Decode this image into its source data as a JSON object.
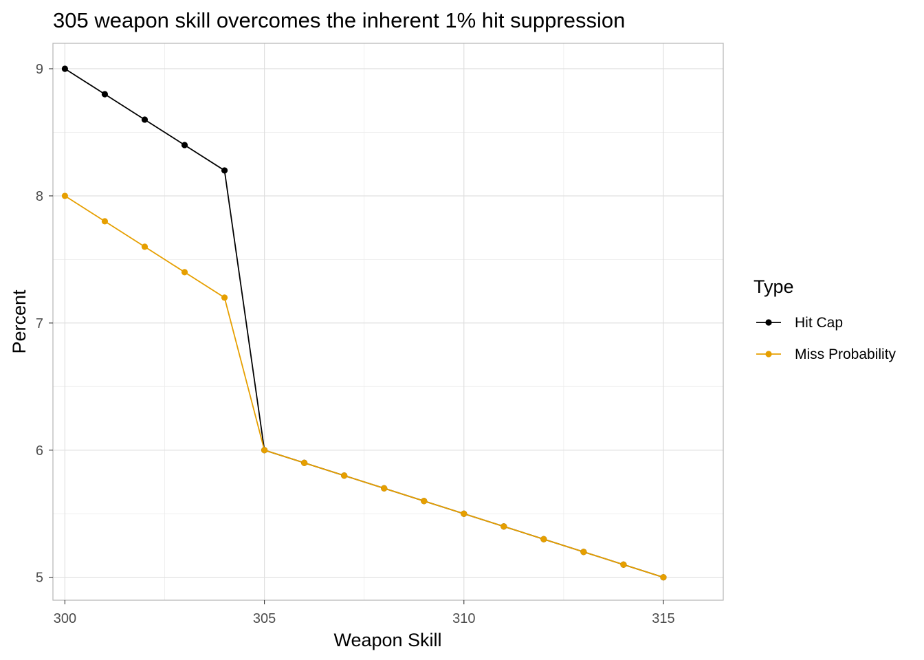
{
  "chart_data": {
    "type": "line",
    "title": "305 weapon skill overcomes the inherent 1% hit suppression",
    "xlabel": "Weapon Skill",
    "ylabel": "Percent",
    "xlim": [
      299.7,
      316.5
    ],
    "ylim": [
      4.82,
      9.2
    ],
    "x_ticks": [
      300,
      305,
      310,
      315
    ],
    "y_ticks": [
      5,
      6,
      7,
      8,
      9
    ],
    "grid": true,
    "legend": {
      "title": "Type",
      "position": "right"
    },
    "series": [
      {
        "name": "Hit Cap",
        "color": "#000000",
        "x": [
          300,
          301,
          302,
          303,
          304,
          305,
          306,
          307,
          308,
          309,
          310,
          311,
          312,
          313,
          314,
          315
        ],
        "values": [
          9.0,
          8.8,
          8.6,
          8.4,
          8.2,
          6.0,
          5.9,
          5.8,
          5.7,
          5.6,
          5.5,
          5.4,
          5.3,
          5.2,
          5.1,
          5.0
        ]
      },
      {
        "name": "Miss Probability",
        "color": "#E69F00",
        "x": [
          300,
          301,
          302,
          303,
          304,
          305,
          306,
          307,
          308,
          309,
          310,
          311,
          312,
          313,
          314,
          315
        ],
        "values": [
          8.0,
          7.8,
          7.6,
          7.4,
          7.2,
          6.0,
          5.9,
          5.8,
          5.7,
          5.6,
          5.5,
          5.4,
          5.3,
          5.2,
          5.1,
          5.0
        ]
      }
    ]
  }
}
